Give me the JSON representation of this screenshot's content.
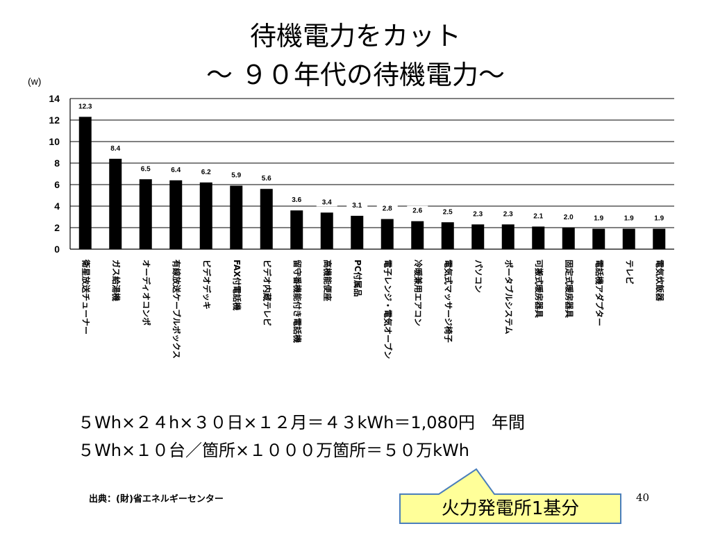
{
  "slide": {
    "title_line1": "待機電力をカット",
    "title_line2": "～ ９０年代の待機電力～",
    "calc_line1": "５Wh×２４h×３０日×１２月＝４３kWh＝1,080円　年間",
    "calc_line2": "５Wh×１０台／箇所×１０００万箇所＝５０万kWh",
    "source": "出典：(財)省エネルギーセンター",
    "page_number": "40",
    "callout": "火力発電所1基分",
    "colors": {
      "bars": "#000000",
      "callout_fill": "#ffff99",
      "callout_border": "#4a7ebb"
    }
  },
  "chart_data": {
    "type": "bar",
    "unit_label": "(w)",
    "ylim": [
      0,
      14
    ],
    "yticks": [
      0,
      2,
      4,
      6,
      8,
      10,
      12,
      14
    ],
    "grid": true,
    "categories": [
      "衛星放送チューナー",
      "ガス給湯機",
      "オーディオコンポ",
      "有線放送ケーブルボックス",
      "ビデオデッキ",
      "FAX付電話機",
      "ビデオ内蔵テレビ",
      "留守番機能付き電話機",
      "高機能便座",
      "PC付属品",
      "電子レンジ・電気オーブン",
      "冷暖兼用エアコン",
      "電気式マッサージ椅子",
      "パソコン",
      "ポータブルシステム",
      "可搬式暖房器具",
      "固定式暖房器具",
      "電話機アダプター",
      "テレビ",
      "電気炊飯器"
    ],
    "values": [
      12.3,
      8.4,
      6.5,
      6.4,
      6.2,
      5.9,
      5.6,
      3.6,
      3.4,
      3.1,
      2.8,
      2.6,
      2.5,
      2.3,
      2.3,
      2.1,
      2.0,
      1.9,
      1.9,
      1.9
    ],
    "value_labels": [
      "12.3",
      "8.4",
      "6.5",
      "6.4",
      "6.2",
      "5.9",
      "5.6",
      "3.6",
      "3.4",
      "3.1",
      "2.8",
      "2.6",
      "2.5",
      "2.3",
      "2.3",
      "2.1",
      "2.0",
      "1.9",
      "1.9",
      "1.9"
    ]
  }
}
